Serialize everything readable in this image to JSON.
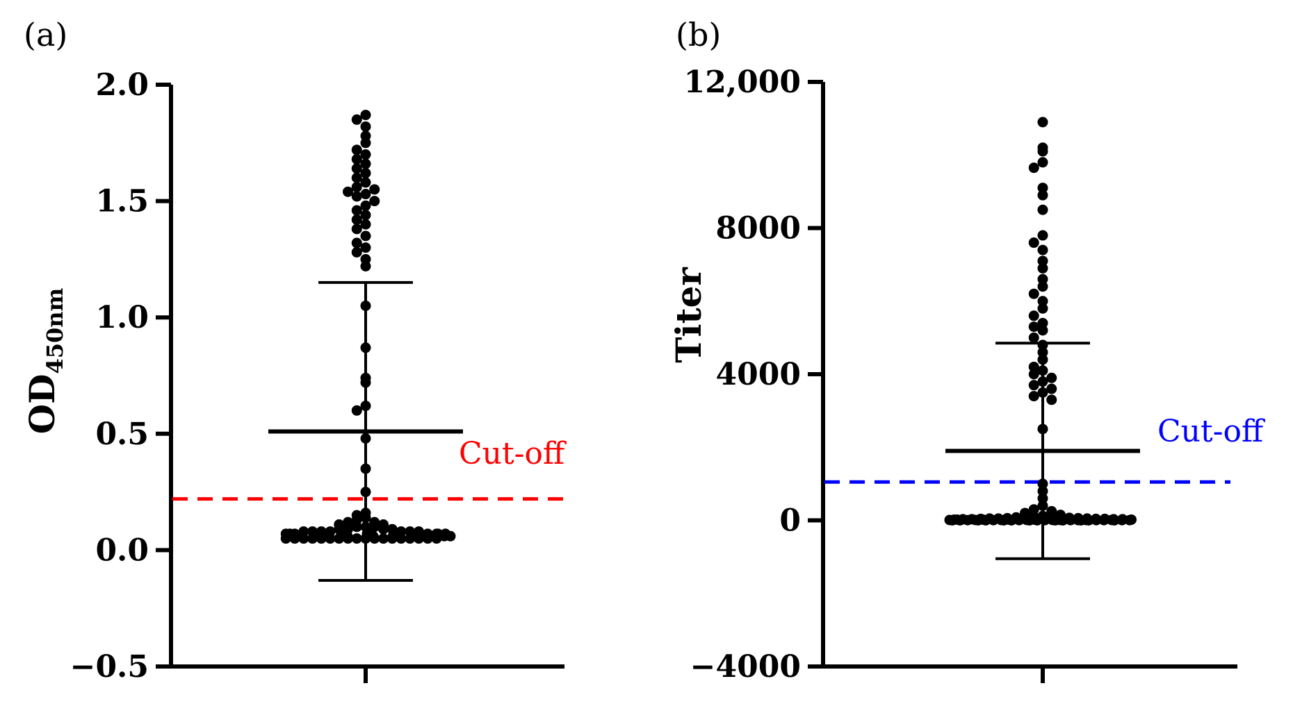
{
  "chart_data": [
    {
      "panel": "(a)",
      "type": "scatter",
      "ylabel_main": "OD",
      "ylabel_sub": "450nm",
      "ylim": [
        -0.5,
        2.0
      ],
      "yticks": [
        {
          "value": 2.0,
          "label": "2.0"
        },
        {
          "value": 1.5,
          "label": "1.5"
        },
        {
          "value": 1.0,
          "label": "1.0"
        },
        {
          "value": 0.5,
          "label": "0.5"
        },
        {
          "value": 0.0,
          "label": "0.0"
        },
        {
          "value": -0.5,
          "label": "−0.5"
        }
      ],
      "mean": 0.51,
      "sd_upper": 1.15,
      "sd_lower": -0.13,
      "cutoff": {
        "value": 0.22,
        "label": "Cut-off",
        "color": "#ff0000"
      },
      "values": [
        1.87,
        1.85,
        1.82,
        1.78,
        1.75,
        1.72,
        1.7,
        1.68,
        1.66,
        1.64,
        1.62,
        1.6,
        1.58,
        1.56,
        1.55,
        1.54,
        1.53,
        1.52,
        1.5,
        1.48,
        1.46,
        1.44,
        1.42,
        1.4,
        1.38,
        1.35,
        1.32,
        1.3,
        1.28,
        1.25,
        1.22,
        1.05,
        0.87,
        0.74,
        0.72,
        0.62,
        0.6,
        0.48,
        0.35,
        0.25,
        0.16,
        0.15,
        0.14,
        0.13,
        0.12,
        0.12,
        0.11,
        0.11,
        0.1,
        0.1,
        0.1,
        0.09,
        0.09,
        0.09,
        0.09,
        0.08,
        0.08,
        0.08,
        0.08,
        0.08,
        0.08,
        0.08,
        0.07,
        0.07,
        0.07,
        0.07,
        0.07,
        0.07,
        0.07,
        0.07,
        0.07,
        0.07,
        0.06,
        0.06,
        0.06,
        0.06,
        0.06,
        0.06,
        0.06,
        0.06,
        0.06,
        0.06,
        0.05,
        0.05,
        0.05,
        0.05,
        0.05,
        0.05,
        0.05,
        0.05,
        0.05,
        0.05,
        0.05,
        0.05,
        0.05,
        0.05,
        0.05,
        0.05,
        0.05,
        0.05
      ]
    },
    {
      "panel": "(b)",
      "type": "scatter",
      "ylabel_main": "Titer",
      "ylim": [
        -4000,
        12000
      ],
      "yticks": [
        {
          "value": 12000,
          "label": "12,000"
        },
        {
          "value": 8000,
          "label": "8000"
        },
        {
          "value": 4000,
          "label": "4000"
        },
        {
          "value": 0,
          "label": "0"
        },
        {
          "value": -4000,
          "label": "−4000"
        }
      ],
      "mean": 1900,
      "sd_upper": 4850,
      "sd_lower": -1050,
      "cutoff": {
        "value": 1050,
        "label": "Cut-off",
        "color": "#0000ff"
      },
      "values": [
        10900,
        10200,
        10100,
        9800,
        9650,
        9100,
        8900,
        8500,
        7800,
        7600,
        7400,
        7100,
        6900,
        6600,
        6400,
        6200,
        6000,
        5800,
        5600,
        5400,
        5300,
        5200,
        5000,
        4800,
        4600,
        4400,
        4200,
        4100,
        4000,
        3900,
        3800,
        3700,
        3600,
        3500,
        3400,
        3300,
        2500,
        1000,
        800,
        600,
        400,
        300,
        250,
        200,
        150,
        120,
        100,
        100,
        90,
        80,
        80,
        70,
        60,
        60,
        50,
        50,
        50,
        40,
        40,
        40,
        30,
        30,
        30,
        30,
        20,
        20,
        20,
        20,
        20,
        20,
        10,
        10,
        10,
        10,
        10,
        10,
        10,
        10,
        5,
        5,
        5,
        5,
        5,
        5,
        5,
        5,
        5,
        5,
        0,
        0,
        0,
        0,
        0,
        0,
        0,
        0,
        0,
        0,
        0,
        0,
        0
      ]
    }
  ]
}
